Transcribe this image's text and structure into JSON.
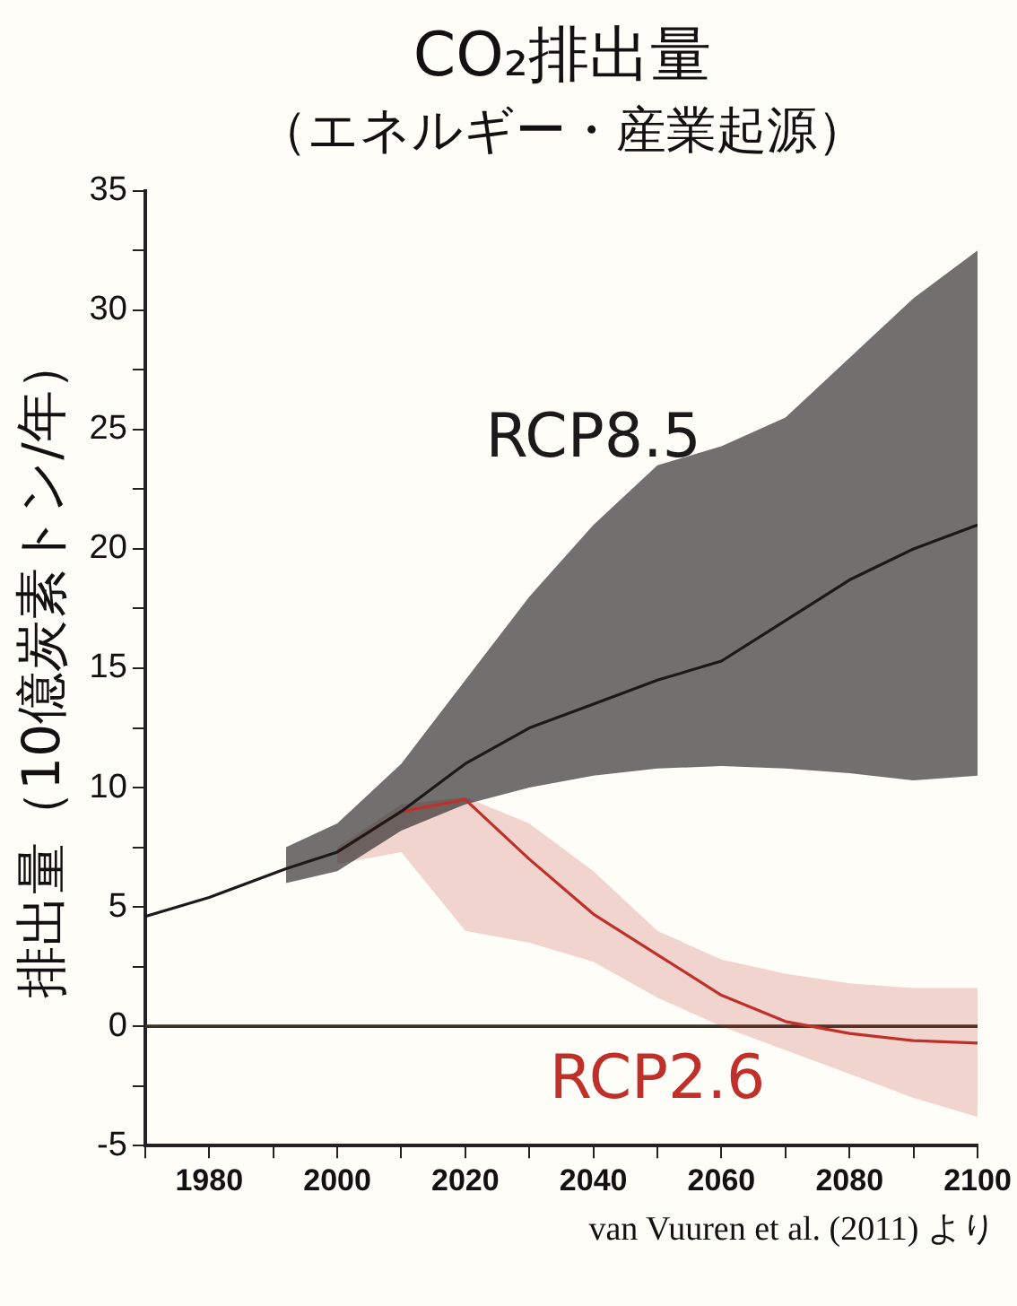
{
  "chart_data": {
    "type": "line",
    "title": "CO₂排出量",
    "subtitle": "（エネルギー・産業起源）",
    "ylabel": "排出量（10億炭素トン/年）",
    "annotations": [
      "van Vuuren et al. (2011) より"
    ],
    "xlim": [
      1970,
      2100
    ],
    "xticks": [
      {
        "value": 1970,
        "label": null
      },
      1980,
      {
        "value": 1990,
        "label": null
      },
      2000,
      {
        "value": 2010,
        "label": null
      },
      2020,
      {
        "value": 2030,
        "label": null
      },
      2040,
      {
        "value": 2050,
        "label": null
      },
      2060,
      {
        "value": 2070,
        "label": null
      },
      2080,
      {
        "value": 2090,
        "label": null
      },
      2100
    ],
    "ylim": [
      -5,
      35
    ],
    "yticks": [
      -5,
      {
        "value": -2.5,
        "label": null
      },
      0,
      {
        "value": 2.5,
        "label": null
      },
      5,
      {
        "value": 7.5,
        "label": null
      },
      10,
      {
        "value": 12.5,
        "label": null
      },
      15,
      {
        "value": 17.5,
        "label": null
      },
      20,
      {
        "value": 22.5,
        "label": null
      },
      25,
      {
        "value": 27.5,
        "label": null
      },
      30,
      {
        "value": 32.5,
        "label": null
      },
      35
    ],
    "grid": false,
    "legend": false,
    "ref_lines": [
      {
        "axis": "y",
        "value": 0,
        "color": "#3a3028"
      }
    ],
    "series": [
      {
        "name": "RCP8.5",
        "color": "#1a1a1a",
        "x": [
          1970,
          1980,
          1992,
          2000,
          2010,
          2020,
          2030,
          2040,
          2050,
          2060,
          2070,
          2080,
          2090,
          2100
        ],
        "values": [
          4.6,
          5.4,
          6.6,
          7.3,
          9,
          11,
          12.5,
          13.5,
          14.5,
          15.3,
          17,
          18.7,
          20,
          21
        ],
        "lower": [
          null,
          null,
          6,
          6.5,
          8.2,
          9.3,
          10,
          10.5,
          10.8,
          10.9,
          10.8,
          10.6,
          10.3,
          10.5
        ],
        "upper": [
          null,
          null,
          7.5,
          8.5,
          11,
          14.5,
          18,
          21,
          23.5,
          24.3,
          25.5,
          28,
          30.5,
          32.5
        ]
      },
      {
        "name": "RCP2.6",
        "color": "#c0302a",
        "x": [
          2000,
          2010,
          2020,
          2030,
          2040,
          2050,
          2060,
          2070,
          2080,
          2090,
          2100
        ],
        "values": [
          7.3,
          9,
          9.5,
          7,
          4.7,
          3,
          1.3,
          0.2,
          -0.3,
          -0.6,
          -0.7
        ],
        "lower": [
          6.8,
          7.3,
          4,
          3.5,
          2.7,
          1.2,
          0,
          -1,
          -2,
          -3,
          -3.8
        ],
        "upper": [
          7.5,
          9.3,
          9.6,
          8.5,
          6.5,
          4,
          2.8,
          2.2,
          1.8,
          1.6,
          1.6
        ]
      }
    ]
  }
}
